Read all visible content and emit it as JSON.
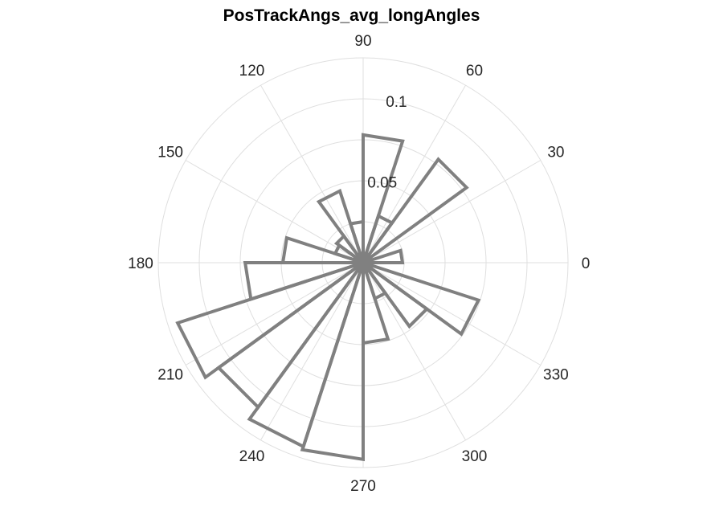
{
  "chart_data": {
    "type": "polar-histogram",
    "title": "PosTrackAngs_avg_longAngles",
    "theta_ticks": [
      "0",
      "30",
      "60",
      "90",
      "120",
      "150",
      "180",
      "210",
      "240",
      "270",
      "300",
      "330"
    ],
    "theta_tick_values_deg": [
      0,
      30,
      60,
      90,
      120,
      150,
      180,
      210,
      240,
      270,
      300,
      330
    ],
    "r_ticks": [
      "0.05",
      "0.1"
    ],
    "r_tick_values": [
      0.05,
      0.1
    ],
    "rlim": [
      0,
      0.125
    ],
    "theta_label_angle_deg": 80,
    "grid": true,
    "bin_width_deg": 18,
    "bins": [
      {
        "start": 0,
        "end": 18,
        "value": 0.024
      },
      {
        "start": 18,
        "end": 36,
        "value": 0.004
      },
      {
        "start": 36,
        "end": 54,
        "value": 0.078
      },
      {
        "start": 54,
        "end": 72,
        "value": 0.03
      },
      {
        "start": 72,
        "end": 90,
        "value": 0.078
      },
      {
        "start": 90,
        "end": 108,
        "value": 0.025
      },
      {
        "start": 108,
        "end": 126,
        "value": 0.046
      },
      {
        "start": 126,
        "end": 144,
        "value": 0.02
      },
      {
        "start": 144,
        "end": 162,
        "value": 0.018
      },
      {
        "start": 162,
        "end": 180,
        "value": 0.049
      },
      {
        "start": 180,
        "end": 198,
        "value": 0.072
      },
      {
        "start": 198,
        "end": 216,
        "value": 0.119
      },
      {
        "start": 216,
        "end": 234,
        "value": 0.109
      },
      {
        "start": 234,
        "end": 252,
        "value": 0.118
      },
      {
        "start": 252,
        "end": 270,
        "value": 0.12
      },
      {
        "start": 270,
        "end": 288,
        "value": 0.049
      },
      {
        "start": 288,
        "end": 306,
        "value": 0.023
      },
      {
        "start": 306,
        "end": 324,
        "value": 0.048
      },
      {
        "start": 324,
        "end": 342,
        "value": 0.074
      },
      {
        "start": 342,
        "end": 360,
        "value": 0.004
      }
    ],
    "colors": {
      "edge": "#808080",
      "face": "#ffffff",
      "grid": "#dfdfdf",
      "text": "#262626"
    }
  }
}
